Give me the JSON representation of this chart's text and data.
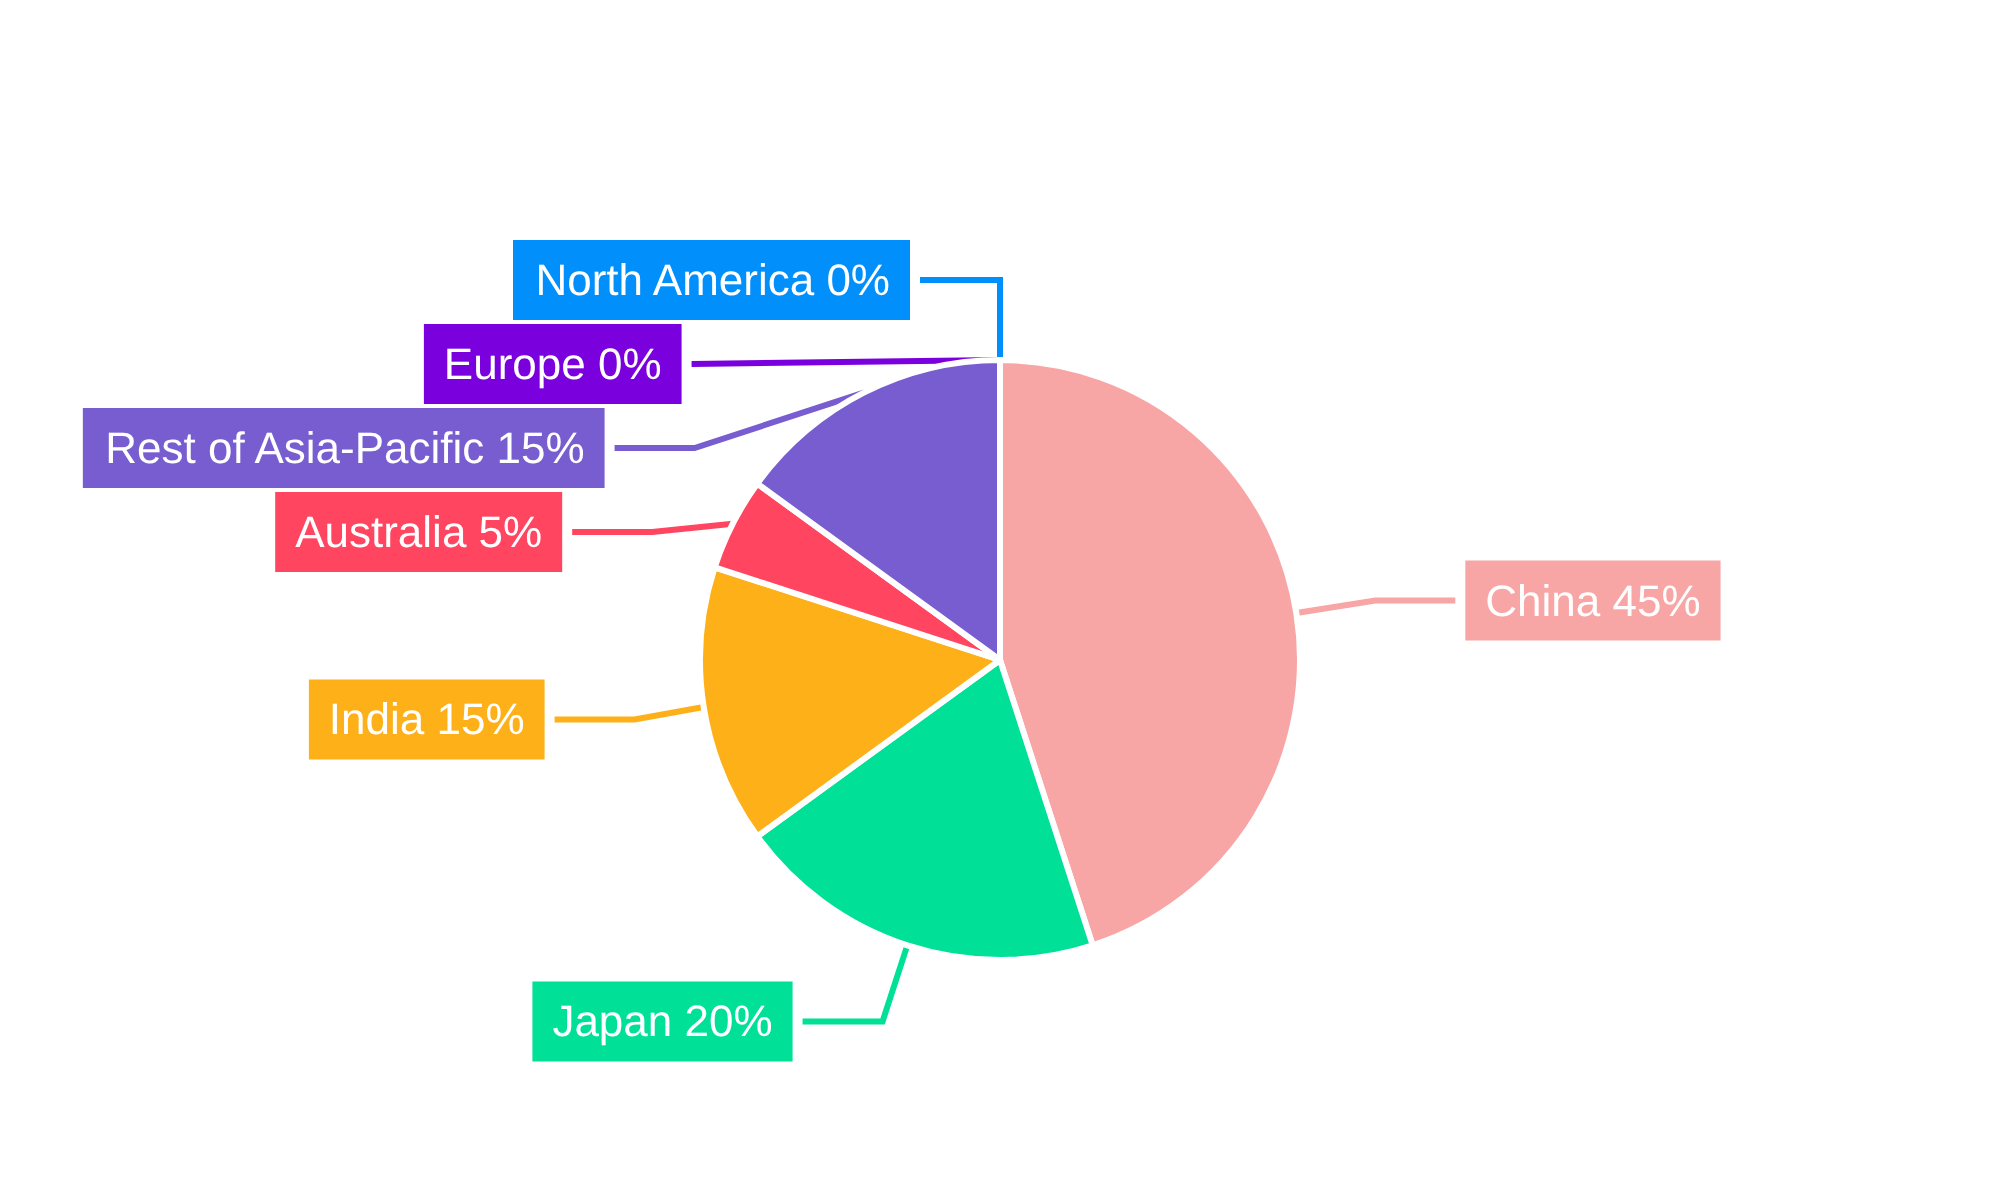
{
  "chart_data": {
    "type": "pie",
    "categories": [
      "China",
      "Japan",
      "India",
      "Australia",
      "Rest of Asia-Pacific",
      "North America",
      "Europe"
    ],
    "values": [
      45,
      20,
      15,
      5,
      15,
      0,
      0
    ],
    "value_labels": [
      "45%",
      "20%",
      "15%",
      "5%",
      "15%",
      "0%",
      "0%"
    ],
    "colors": [
      "#f8a5a5",
      "#00e096",
      "#feb019",
      "#ff4560",
      "#775dd0",
      "#008ffb",
      "#7a00dd"
    ],
    "legend": false
  }
}
